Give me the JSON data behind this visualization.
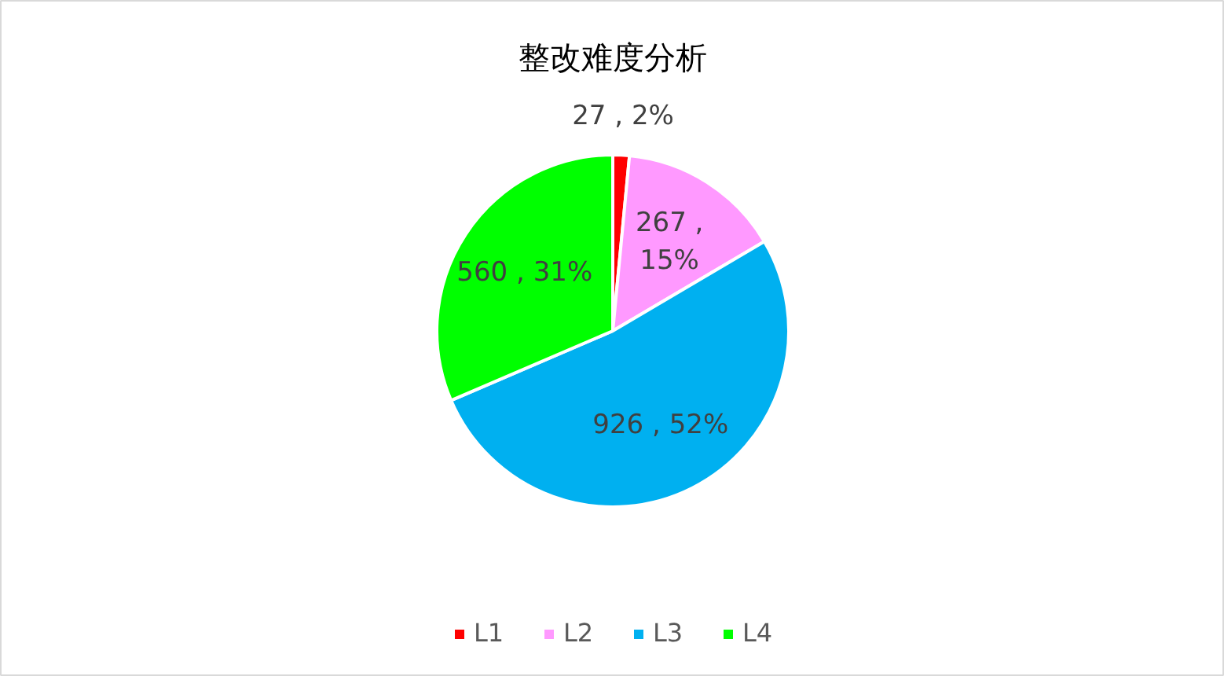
{
  "chart_data": {
    "type": "pie",
    "title": "整改难度分析",
    "categories": [
      "L1",
      "L2",
      "L3",
      "L4"
    ],
    "values": [
      27,
      267,
      926,
      560
    ],
    "colors": [
      "#ff0000",
      "#ff99ff",
      "#00b0f0",
      "#00ff00"
    ],
    "value_labels": [
      "27 , 2%",
      "267 , 15%",
      "926 , 52%",
      "560 , 31%"
    ],
    "legend": "bottom"
  }
}
